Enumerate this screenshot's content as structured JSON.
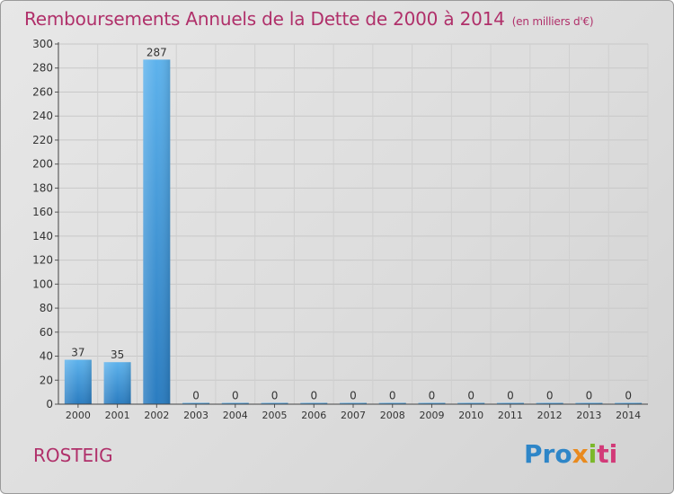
{
  "chart_data": {
    "type": "bar",
    "title": "Remboursements Annuels de la Dette de 2000 à 2014",
    "unit_note": "(en milliers d'€)",
    "categories": [
      "2000",
      "2001",
      "2002",
      "2003",
      "2004",
      "2005",
      "2006",
      "2007",
      "2008",
      "2009",
      "2010",
      "2011",
      "2012",
      "2013",
      "2014"
    ],
    "values": [
      37,
      35,
      287,
      0,
      0,
      0,
      0,
      0,
      0,
      0,
      0,
      0,
      0,
      0,
      0
    ],
    "ylim": [
      0,
      300
    ],
    "yticks": [
      0,
      20,
      40,
      60,
      80,
      100,
      120,
      140,
      160,
      180,
      200,
      220,
      240,
      260,
      280,
      300
    ],
    "xlabel": "",
    "ylabel": "",
    "bar_color": "#3f93d4"
  },
  "footer": {
    "town": "ROSTEIG",
    "logo_parts": [
      "Pro",
      "x",
      "i",
      "ti"
    ]
  }
}
